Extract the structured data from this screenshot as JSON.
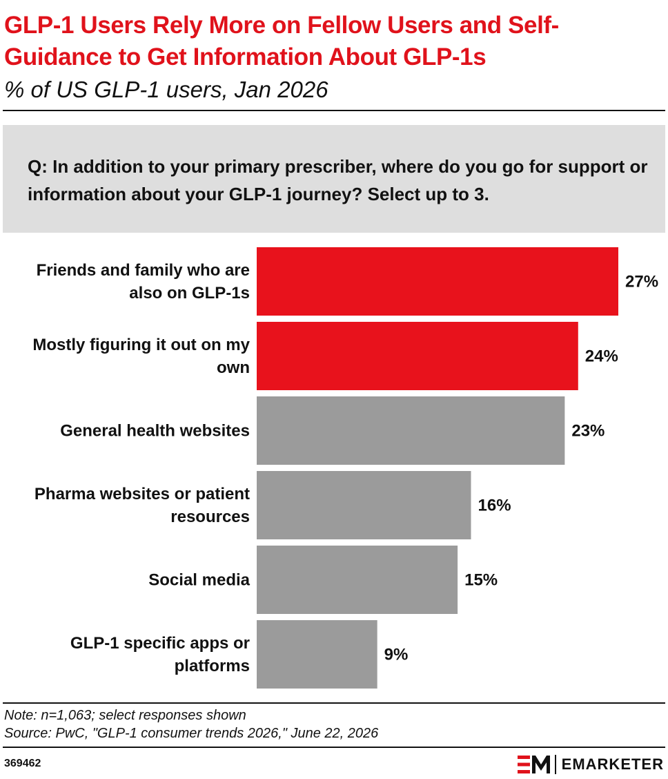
{
  "header": {
    "title": "GLP-1 Users Rely More on Fellow Users and Self-Guidance to Get Information About GLP-1s",
    "subtitle": "% of US GLP-1 users, Jan 2026"
  },
  "question": "Q: In addition to your primary prescriber, where do you go for support or information about your GLP-1 journey? Select up to 3.",
  "chart_data": {
    "type": "bar",
    "orientation": "horizontal",
    "categories": [
      [
        "Friends and family who are",
        "also on GLP-1s"
      ],
      [
        "Mostly figuring it out on my",
        "own"
      ],
      [
        "General health websites"
      ],
      [
        "Pharma websites or patient",
        "resources"
      ],
      [
        "Social media"
      ],
      [
        "GLP-1 specific apps or",
        "platforms"
      ]
    ],
    "values": [
      27,
      24,
      23,
      16,
      15,
      9
    ],
    "value_labels": [
      "27%",
      "24%",
      "23%",
      "16%",
      "15%",
      "9%"
    ],
    "highlight": [
      true,
      true,
      false,
      false,
      false,
      false
    ],
    "xlim": [
      0,
      27
    ],
    "grid": false,
    "legend": "none"
  },
  "colors": {
    "accent": "#e0121b",
    "bar_default": "#9b9b9b",
    "bar_highlight": "#e8121c"
  },
  "footer": {
    "note": "Note: n=1,063; select responses shown",
    "source": "Source: PwC, \"GLP-1 consumer trends 2026,\" June 22, 2026",
    "chart_id": "369462",
    "brand_name": "EMARKETER"
  }
}
